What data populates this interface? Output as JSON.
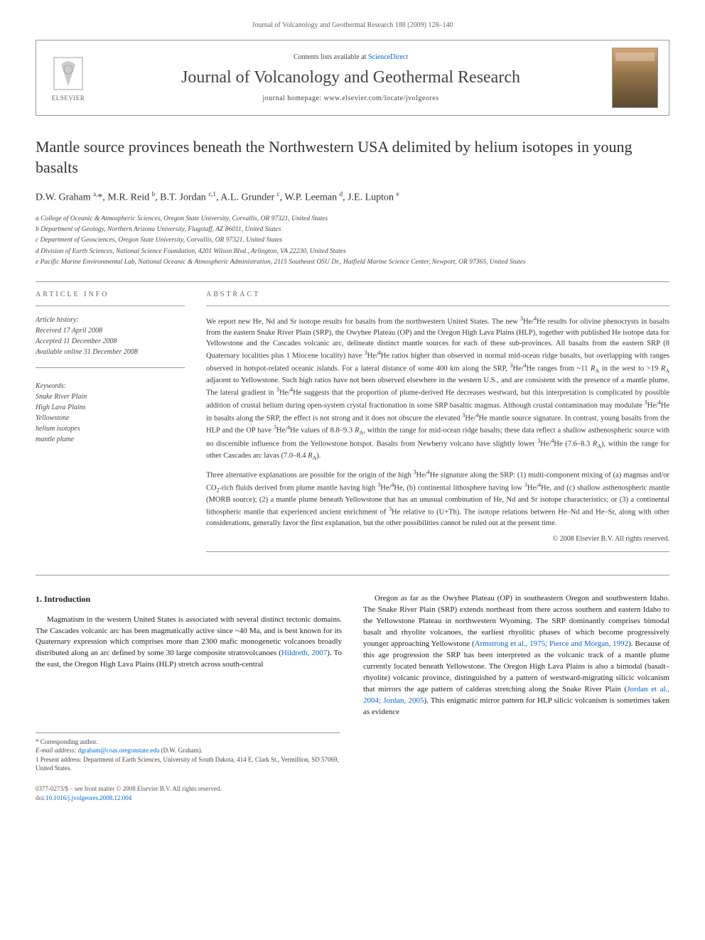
{
  "header": {
    "running_head": "Journal of Volcanology and Geothermal Research 188 (2009) 128–140"
  },
  "banner": {
    "publisher": "ELSEVIER",
    "contents_prefix": "Contents lists available at ",
    "contents_link": "ScienceDirect",
    "journal_name": "Journal of Volcanology and Geothermal Research",
    "homepage_prefix": "journal homepage: ",
    "homepage_url": "www.elsevier.com/locate/jvolgeores"
  },
  "article": {
    "title": "Mantle source provinces beneath the Northwestern USA delimited by helium isotopes in young basalts",
    "authors_html": "D.W. Graham <sup>a,</sup>*, M.R. Reid <sup>b</sup>, B.T. Jordan <sup>c,1</sup>, A.L. Grunder <sup>c</sup>, W.P. Leeman <sup>d</sup>, J.E. Lupton <sup>e</sup>",
    "affiliations": [
      "a College of Oceanic & Atmospheric Sciences, Oregon State University, Corvallis, OR 97321, United States",
      "b Department of Geology, Northern Arizona University, Flagstaff, AZ 86011, United States",
      "c Department of Geosciences, Oregon State University, Corvallis, OR 97321, United States",
      "d Division of Earth Sciences, National Science Foundation, 4201 Wilson Blvd., Arlington, VA 22230, United States",
      "e Pacific Marine Environmental Lab, National Oceanic & Atmospheric Administration, 2115 Southeast OSU Dr., Hatfield Marine Science Center, Newport, OR 97365, United States"
    ]
  },
  "info": {
    "article_info_heading": "ARTICLE INFO",
    "abstract_heading": "ABSTRACT",
    "history_label": "Article history:",
    "history_received": "Received 17 April 2008",
    "history_accepted": "Accepted 11 December 2008",
    "history_online": "Available online 31 December 2008",
    "keywords_label": "Keywords:",
    "keywords": [
      "Snake River Plain",
      "High Lava Plains",
      "Yellowstone",
      "helium isotopes",
      "mantle plume"
    ]
  },
  "abstract": {
    "para1_html": "We report new He, Nd and Sr isotope results for basalts from the northwestern United States. The new <sup>3</sup>He/<sup>4</sup>He results for olivine phenocrysts in basalts from the eastern Snake River Plain (SRP), the Owyhee Plateau (OP) and the Oregon High Lava Plains (HLP), together with published He isotope data for Yellowstone and the Cascades volcanic arc, delineate distinct mantle sources for each of these sub-provinces. All basalts from the eastern SRP (8 Quaternary localities plus 1 Miocene locality) have <sup>3</sup>He/<sup>4</sup>He ratios higher than observed in normal mid-ocean ridge basalts, but overlapping with ranges observed in hotspot-related oceanic islands. For a lateral distance of some 400 km along the SRP, <sup>3</sup>He/<sup>4</sup>He ranges from ~11 <i>R</i><sub>A</sub> in the west to >19 <i>R</i><sub>A</sub> adjacent to Yellowstone. Such high ratios have not been observed elsewhere in the western U.S., and are consistent with the presence of a mantle plume. The lateral gradient in <sup>3</sup>He/<sup>4</sup>He suggests that the proportion of plume-derived He decreases westward, but this interpretation is complicated by possible addition of crustal helium during open-system crystal fractionation in some SRP basaltic magmas. Although crustal contamination may modulate <sup>3</sup>He/<sup>4</sup>He in basalts along the SRP, the effect is not strong and it does not obscure the elevated <sup>3</sup>He/<sup>4</sup>He mantle source signature. In contrast, young basalts from the HLP and the OP have <sup>3</sup>He/<sup>4</sup>He values of 8.8–9.3 <i>R</i><sub>A</sub>, within the range for mid-ocean ridge basalts; these data reflect a shallow asthenospheric source with no discernible influence from the Yellowstone hotspot. Basalts from Newberry volcano have slightly lower <sup>3</sup>He/<sup>4</sup>He (7.6–8.3 <i>R</i><sub>A</sub>), within the range for other Cascades arc lavas (7.0–8.4 <i>R</i><sub>A</sub>).",
    "para2_html": "Three alternative explanations are possible for the origin of the high <sup>3</sup>He/<sup>4</sup>He signature along the SRP: (1) multi-component mixing of (a) magmas and/or CO<sub>2</sub>-rich fluids derived from plume mantle having high <sup>3</sup>He/<sup>4</sup>He, (b) continental lithosphere having low <sup>3</sup>He/<sup>4</sup>He, and (c) shallow asthenospheric mantle (MORB source); (2) a mantle plume beneath Yellowstone that has an unusual combination of He, Nd and Sr isotope characteristics; or (3) a continental lithospheric mantle that experienced ancient enrichment of <sup>3</sup>He relative to (U+Th). The isotope relations between He–Nd and He–Sr, along with other considerations, generally favor the first explanation, but the other possibilities cannot be ruled out at the present time.",
    "copyright": "© 2008 Elsevier B.V. All rights reserved."
  },
  "body": {
    "section_heading": "1. Introduction",
    "col1_html": "Magmatism in the western United States is associated with several distinct tectonic domains. The Cascades volcanic arc has been magmatically active since ~40 Ma, and is best known for its Quaternary expression which comprises more than 2300 mafic monogenetic volcanoes broadly distributed along an arc defined by some 30 large composite stratovolcanoes (<a href=\"#\">Hildreth, 2007</a>). To the east, the Oregon High Lava Plains (HLP) stretch across south-central",
    "col2_html": "Oregon as far as the Owyhee Plateau (OP) in southeastern Oregon and southwestern Idaho. The Snake River Plain (SRP) extends northeast from there across southern and eastern Idaho to the Yellowstone Plateau in northwestern Wyoming. The SRP dominantly comprises bimodal basalt and rhyolite volcanoes, the earliest rhyolitic phases of which become progressively younger approaching Yellowstone (<a href=\"#\">Armstrong et al., 1975; Pierce and Morgan, 1992</a>). Because of this age progression the SRP has been interpreted as the volcanic track of a mantle plume currently located beneath Yellowstone. The Oregon High Lava Plains is also a bimodal (basalt–rhyolite) volcanic province, distinguished by a pattern of westward-migrating silicic volcanism that mirrors the age pattern of calderas stretching along the Snake River Plain (<a href=\"#\">Jordan et al., 2004; Jordan, 2005</a>). This enigmatic mirror pattern for HLP silicic volcanism is sometimes taken as evidence"
  },
  "footnotes": {
    "corresponding": "* Corresponding author.",
    "email_label": "E-mail address: ",
    "email": "dgraham@coas.oregonstate.edu",
    "email_suffix": " (D.W. Graham).",
    "present_address": "1 Present address: Department of Earth Sciences, University of South Dakota, 414 E. Clark St., Vermillion, SD 57069, United States."
  },
  "footer": {
    "issn_line": "0377-0273/$ – see front matter © 2008 Elsevier B.V. All rights reserved.",
    "doi_label": "doi:",
    "doi": "10.1016/j.jvolgeores.2008.12.004"
  },
  "colors": {
    "link": "#0066cc",
    "text": "#1a1a1a",
    "muted": "#666666",
    "rule": "#999999"
  }
}
